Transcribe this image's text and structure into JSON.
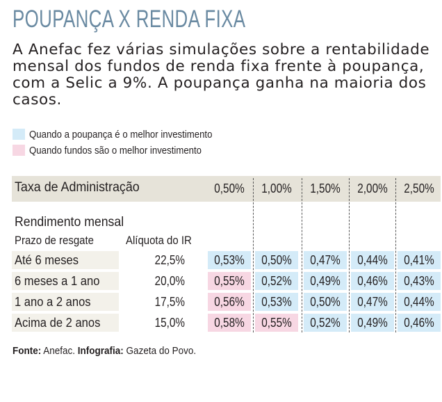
{
  "title": "POUPANÇA X RENDA FIXA",
  "lead": "A Anefac fez várias simulações sobre a rentabilidade mensal dos fundos de renda fixa frente à poupança, com a Selic a 9%. A poupança ganha na maioria dos casos.",
  "legend": [
    {
      "label": "Quando a poupança é o melhor investimento",
      "color": "#d4ebf8"
    },
    {
      "label": "Quando fundos são o melhor investimento",
      "color": "#f7d7e3"
    }
  ],
  "colors": {
    "poupanca": "#d4ebf8",
    "fundos": "#f7d7e3",
    "header_bg": "#e6e3d9",
    "row_bg": "#f3f1ea",
    "title": "#6a8aa2"
  },
  "footer": {
    "source_label": "Fonte:",
    "source": "Anefac.",
    "infographic_label": "Infografia:",
    "infographic": "Gazeta do Povo."
  },
  "chart_data": {
    "type": "table",
    "title": "POUPANÇA X RENDA FIXA",
    "header_label": "Taxa de Administração",
    "admin_fees": [
      "0,50%",
      "1,00%",
      "1,50%",
      "2,00%",
      "2,50%"
    ],
    "section_label": "Rendimento mensal",
    "col_prazo": "Prazo de resgate",
    "col_ir": "Alíquota do IR",
    "rows": [
      {
        "prazo": "Até 6 meses",
        "ir": "22,5%",
        "values": [
          "0,53%",
          "0,50%",
          "0,47%",
          "0,44%",
          "0,41%"
        ],
        "best": [
          "poupanca",
          "poupanca",
          "poupanca",
          "poupanca",
          "poupanca"
        ]
      },
      {
        "prazo": "6 meses a 1 ano",
        "ir": "20,0%",
        "values": [
          "0,55%",
          "0,52%",
          "0,49%",
          "0,46%",
          "0,43%"
        ],
        "best": [
          "fundos",
          "poupanca",
          "poupanca",
          "poupanca",
          "poupanca"
        ]
      },
      {
        "prazo": "1 ano a 2 anos",
        "ir": "17,5%",
        "values": [
          "0,56%",
          "0,53%",
          "0,50%",
          "0,47%",
          "0,44%"
        ],
        "best": [
          "fundos",
          "poupanca",
          "poupanca",
          "poupanca",
          "poupanca"
        ]
      },
      {
        "prazo": "Acima de 2 anos",
        "ir": "15,0%",
        "values": [
          "0,58%",
          "0,55%",
          "0,52%",
          "0,49%",
          "0,46%"
        ],
        "best": [
          "fundos",
          "fundos",
          "poupanca",
          "poupanca",
          "poupanca"
        ]
      }
    ]
  }
}
